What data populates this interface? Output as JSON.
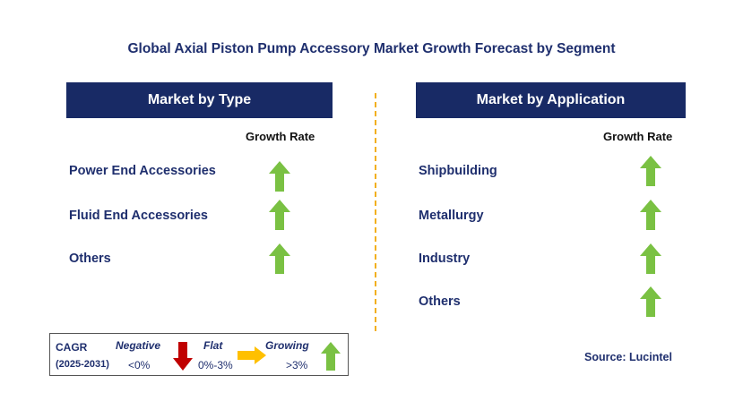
{
  "title": "Global Axial Piston Pump Accessory Market Growth Forecast by Segment",
  "type_panel": {
    "header": "Market by Type",
    "growth_rate_label": "Growth Rate",
    "rows": [
      {
        "label": "Power End Accessories",
        "trend": "growing"
      },
      {
        "label": "Fluid End Accessories",
        "trend": "growing"
      },
      {
        "label": "Others",
        "trend": "growing"
      }
    ]
  },
  "application_panel": {
    "header": "Market by Application",
    "growth_rate_label": "Growth Rate",
    "rows": [
      {
        "label": "Shipbuilding",
        "trend": "growing"
      },
      {
        "label": "Metallurgy",
        "trend": "growing"
      },
      {
        "label": "Industry",
        "trend": "growing"
      },
      {
        "label": "Others",
        "trend": "growing"
      }
    ]
  },
  "legend": {
    "cagr": "CAGR",
    "period": "(2025-2031)",
    "negative": {
      "label": "Negative",
      "range": "<0%",
      "icon": "down-arrow-icon",
      "color": "#c00000"
    },
    "flat": {
      "label": "Flat",
      "range": "0%-3%",
      "icon": "right-arrow-icon",
      "color": "#ffc000"
    },
    "growing": {
      "label": "Growing",
      "range": ">3%",
      "icon": "up-arrow-icon",
      "color": "#7ac143"
    }
  },
  "source": "Source: Lucintel",
  "colors": {
    "header_bg": "#182a65",
    "text": "#1f2f6e",
    "divider": "#f2b01e",
    "growing": "#7ac143"
  }
}
